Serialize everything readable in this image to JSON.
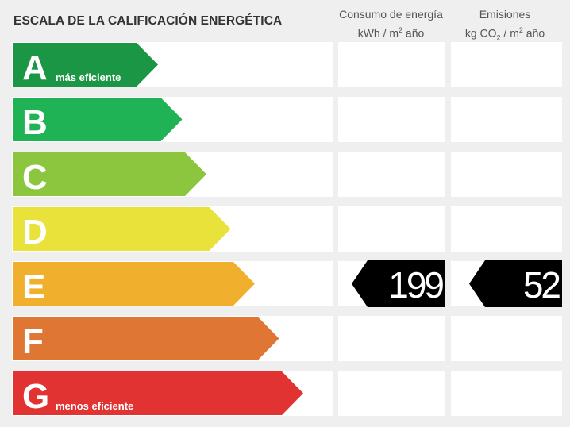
{
  "header": {
    "title": "ESCALA DE LA CALIFICACIÓN ENERGÉTICA",
    "energy_col": {
      "line1": "Consumo de energía",
      "line2_prefix": "kWh  / m",
      "line2_sup": "2",
      "line2_suffix": " año"
    },
    "emissions_col": {
      "line1": "Emisiones",
      "line2_prefix": "kg CO",
      "line2_sub": "2",
      "line2_suffix": "  / m",
      "line2_sup": "2",
      "line2_suffix2": " año"
    }
  },
  "chart_data": {
    "type": "bar",
    "title": "ESCALA DE LA CALIFICACIÓN ENERGÉTICA",
    "categories": [
      "A",
      "B",
      "C",
      "D",
      "E",
      "F",
      "G"
    ],
    "sublabels": [
      "más eficiente",
      "",
      "",
      "",
      "",
      "",
      "menos eficiente"
    ],
    "colors": [
      "#1a9645",
      "#20b356",
      "#8cc63f",
      "#e8e23a",
      "#f0b02d",
      "#e07633",
      "#e03332"
    ],
    "rating": "E",
    "energy_consumption": 199,
    "emissions": 52
  }
}
